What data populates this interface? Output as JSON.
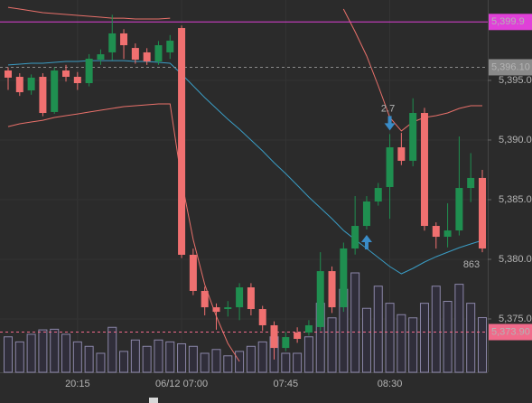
{
  "chart_data": {
    "type": "candlestick",
    "categories": [
      null,
      null,
      null,
      null,
      null,
      null,
      "20:15",
      null,
      null,
      null,
      null,
      null,
      null,
      null,
      null,
      "06/12 07:00",
      null,
      null,
      null,
      null,
      null,
      null,
      null,
      null,
      "07:45",
      null,
      null,
      null,
      null,
      null,
      null,
      null,
      null,
      "08:30",
      null,
      null,
      null,
      null,
      null,
      null,
      null,
      null
    ],
    "open": [
      5395.83,
      5395.3,
      5394.16,
      5395.3,
      5392.35,
      5395.83,
      5395.3,
      5394.77,
      5396.74,
      5397.35,
      5398.94,
      5397.72,
      5397.35,
      5396.59,
      5397.35,
      5399.39,
      5380.38,
      5377.35,
      5375.98,
      5375.83,
      5375.98,
      5377.65,
      5375.83,
      5374.47,
      5372.57,
      5373.86,
      5373.86,
      5374.32,
      5379.01,
      5375.98,
      5380.91,
      5382.8,
      5384.85,
      5386.06,
      5389.39,
      5388.26,
      5392.27,
      5382.8,
      5381.89,
      5382.42,
      5385.98,
      5386.82
    ],
    "high": [
      5396.1,
      5395.6,
      5395.5,
      5395.6,
      5396.1,
      5396.3,
      5395.7,
      5397.2,
      5397.6,
      5400.5,
      5399.3,
      5398.1,
      5397.7,
      5398.3,
      5398.8,
      5399.6,
      5380.9,
      5377.7,
      5376.3,
      5376.5,
      5378.0,
      5378.0,
      5376.1,
      5374.8,
      5373.9,
      5374.3,
      5374.9,
      5380.6,
      5379.4,
      5381.4,
      5385.3,
      5385.3,
      5386.4,
      5390.5,
      5390.6,
      5393.5,
      5392.7,
      5383.1,
      5384.7,
      5390.3,
      5388.9,
      5387.5
    ],
    "low": [
      5394.2,
      5393.7,
      5393.8,
      5392.0,
      5392.2,
      5394.9,
      5394.2,
      5394.5,
      5396.3,
      5396.7,
      5396.8,
      5396.4,
      5396.3,
      5396.3,
      5396.8,
      5380.1,
      5377.0,
      5375.3,
      5374.1,
      5375.2,
      5374.9,
      5375.3,
      5374.0,
      5371.6,
      5372.3,
      5373.0,
      5373.6,
      5374.0,
      5375.5,
      5375.6,
      5380.4,
      5382.5,
      5384.5,
      5383.4,
      5387.9,
      5387.8,
      5382.4,
      5380.9,
      5381.0,
      5382.0,
      5384.8,
      5380.6
    ],
    "close": [
      5395.23,
      5394.01,
      5395.23,
      5392.27,
      5395.83,
      5395.3,
      5394.77,
      5396.82,
      5397.19,
      5398.94,
      5397.95,
      5396.74,
      5396.59,
      5397.95,
      5398.33,
      5380.38,
      5377.35,
      5375.98,
      5375.6,
      5375.98,
      5377.65,
      5375.83,
      5374.47,
      5372.57,
      5373.48,
      5373.33,
      5374.47,
      5379.01,
      5375.98,
      5380.91,
      5382.8,
      5384.85,
      5385.98,
      5389.39,
      5388.26,
      5392.27,
      5382.8,
      5381.89,
      5382.42,
      5385.98,
      5386.82,
      5380.91
    ],
    "volume": [
      560,
      480,
      600,
      670,
      680,
      600,
      480,
      410,
      300,
      710,
      330,
      510,
      410,
      510,
      480,
      450,
      410,
      300,
      360,
      260,
      330,
      410,
      480,
      560,
      300,
      300,
      560,
      1090,
      860,
      1310,
      1570,
      1010,
      1360,
      1090,
      910,
      860,
      1090,
      1360,
      1120,
      1390,
      1090,
      863
    ],
    "series": [
      {
        "color": "#e8706a",
        "values": [
          5401.13,
          5400.98,
          5400.83,
          5400.68,
          5400.6,
          5400.53,
          5400.45,
          5400.38,
          5400.3,
          5400.22,
          5400.22,
          5400.15,
          5400.15,
          5400.15,
          5400.22,
          null,
          null,
          null,
          null,
          null,
          null,
          null,
          null,
          null,
          null,
          null,
          null,
          null,
          null,
          5400.98,
          5399.09,
          5397.04,
          5394.54,
          5391.89,
          5390.76,
          5391.51,
          5391.89,
          5392.04,
          5392.27,
          5392.65,
          5392.88,
          5392.88
        ]
      },
      {
        "color": "#e8706a",
        "values": [
          5391.13,
          5391.36,
          5391.51,
          5391.66,
          5391.89,
          5392.04,
          5392.19,
          5392.35,
          5392.5,
          5392.65,
          5392.8,
          5392.88,
          5392.95,
          5393.03,
          5393.03,
          5386.59,
          5381.66,
          5377.88,
          5375.22,
          5372.95,
          5371.44,
          null,
          null,
          null,
          null,
          null,
          null,
          null,
          null,
          null,
          null,
          null,
          null,
          null,
          null,
          null,
          null,
          null,
          null,
          null,
          null,
          null
        ]
      },
      {
        "color": "#3a9cc4",
        "values": [
          5396.29,
          5396.36,
          5396.44,
          5396.44,
          5396.51,
          5396.59,
          5396.59,
          5396.66,
          5396.66,
          5396.66,
          5396.66,
          5396.59,
          5396.59,
          5396.51,
          5396.44,
          5395.53,
          5394.54,
          5393.56,
          5392.65,
          5391.74,
          5390.91,
          5390.0,
          5389.09,
          5388.1,
          5387.19,
          5386.21,
          5385.22,
          5384.32,
          5383.41,
          5382.42,
          5381.66,
          5380.91,
          5380.15,
          5379.39,
          5378.79,
          5379.24,
          5379.77,
          5380.22,
          5380.6,
          5380.98,
          5381.29,
          5381.59
        ]
      }
    ],
    "up_color": "#1f8f50",
    "down_color": "#f07070",
    "volume_color": "#8b86a8",
    "ylim": [
      5370.53,
      5401.74
    ],
    "yticks": [
      {
        "value": 5375,
        "label": "5,375.00"
      },
      {
        "value": 5380,
        "label": "5,380.00"
      },
      {
        "value": 5385,
        "label": "5,385.00"
      },
      {
        "value": 5390,
        "label": "5,390.00"
      },
      {
        "value": 5395,
        "label": "5,395.00"
      }
    ],
    "price_lines": [
      {
        "value": 5399.9,
        "label": "5,399.9",
        "color": "#e040d8",
        "style": "solid"
      },
      {
        "value": 5396.1,
        "label": "5,396.10",
        "color": "#8a8a8a",
        "style": "dashed"
      },
      {
        "value": 5373.9,
        "label": "5,373.90",
        "color": "#f06a8a",
        "style": "dashed"
      }
    ],
    "markers": [
      {
        "index": 31,
        "direction": "up",
        "color": "#3a8cc8"
      },
      {
        "index": 33,
        "direction": "down",
        "color": "#3a8cc8",
        "label": "2.7"
      }
    ],
    "volume_label_index": 41
  }
}
